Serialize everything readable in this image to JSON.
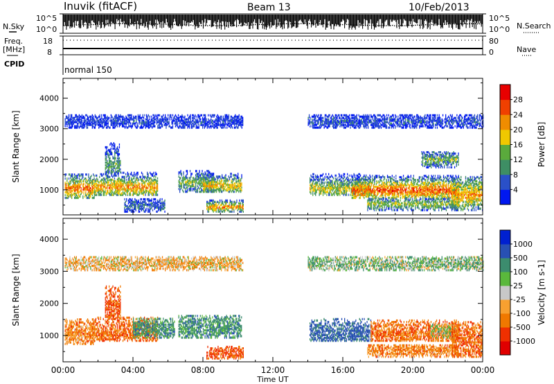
{
  "header": {
    "station": "Inuvik (fitACF)",
    "beam": "Beam 13",
    "date": "10/Feb/2013"
  },
  "top_panels": {
    "nsky_label": "N.Sky",
    "nsky_ticks": [
      "10^5",
      "10^0"
    ],
    "nsearch_label": "N.Search",
    "nsearch_ticks": [
      "10^5",
      "10^0"
    ],
    "freq_label_1": "Freq.",
    "freq_label_2": "[MHz]",
    "freq_ticks": [
      "18",
      "8"
    ],
    "nave_label": "Nave",
    "nave_ticks": [
      "80",
      "0"
    ],
    "cpid_label": "CPID",
    "cpid_value": "normal 150"
  },
  "colors": {
    "power": [
      "#0018f0",
      "#2a50c8",
      "#3e8e64",
      "#5aaa3c",
      "#f0c800",
      "#f08c00",
      "#f04000",
      "#e80000"
    ],
    "velocity": [
      "#e00000",
      "#f03000",
      "#f07800",
      "#f8a030",
      "#c8c8c8",
      "#5ab83c",
      "#3c8c6e",
      "#2850b4",
      "#0020d0"
    ]
  },
  "chart_data": [
    {
      "type": "heatmap",
      "title": "",
      "xlabel": "Time UT",
      "ylabel": "Slant Range [km]",
      "x_ticks": [
        "00:00",
        "04:00",
        "08:00",
        "12:00",
        "16:00",
        "20:00",
        "00:00"
      ],
      "xlim_hours": [
        0,
        24
      ],
      "y_ticks": [
        1000,
        2000,
        3000,
        4000
      ],
      "ylim": [
        180,
        4650
      ],
      "colorbar_label": "Power [dB]",
      "colorbar_ticks": [
        "4",
        "8",
        "12",
        "16",
        "20",
        "24",
        "28"
      ],
      "colorbar_range": [
        0,
        30
      ],
      "regions": [
        {
          "t0": 0.1,
          "t1": 1.8,
          "r0": 700,
          "r1": 1500,
          "core": 1000,
          "v": 24
        },
        {
          "t0": 1.8,
          "t1": 5.4,
          "r0": 800,
          "r1": 1550,
          "core": 1050,
          "v": 22
        },
        {
          "t0": 2.4,
          "t1": 3.3,
          "r0": 1500,
          "r1": 2500,
          "core": 1800,
          "v": 12
        },
        {
          "t0": 3.5,
          "t1": 5.8,
          "r0": 250,
          "r1": 700,
          "core": 450,
          "v": 8
        },
        {
          "t0": 6.6,
          "t1": 8.6,
          "r0": 900,
          "r1": 1600,
          "core": 1200,
          "v": 14
        },
        {
          "t0": 8.0,
          "t1": 10.2,
          "r0": 900,
          "r1": 1500,
          "core": 1100,
          "v": 20
        },
        {
          "t0": 8.2,
          "t1": 10.3,
          "r0": 250,
          "r1": 650,
          "core": 400,
          "v": 22
        },
        {
          "t0": 14.1,
          "t1": 17.6,
          "r0": 800,
          "r1": 1500,
          "core": 1000,
          "v": 18
        },
        {
          "t0": 16.5,
          "t1": 22.6,
          "r0": 700,
          "r1": 1450,
          "core": 950,
          "v": 26
        },
        {
          "t0": 17.4,
          "t1": 22.6,
          "r0": 300,
          "r1": 700,
          "core": 500,
          "v": 16
        },
        {
          "t0": 22.2,
          "t1": 24.0,
          "r0": 300,
          "r1": 1400,
          "core": 800,
          "v": 22
        },
        {
          "t0": 0.1,
          "t1": 10.3,
          "r0": 3000,
          "r1": 3450,
          "core": 3200,
          "v": 4
        },
        {
          "t0": 14.0,
          "t1": 24.0,
          "r0": 3000,
          "r1": 3450,
          "core": 3200,
          "v": 5
        },
        {
          "t0": 20.5,
          "t1": 22.6,
          "r0": 1700,
          "r1": 2200,
          "core": 1950,
          "v": 14
        }
      ]
    },
    {
      "type": "heatmap",
      "title": "",
      "xlabel": "Time UT",
      "ylabel": "Slant Range [km]",
      "x_ticks": [
        "00:00",
        "04:00",
        "08:00",
        "12:00",
        "16:00",
        "20:00",
        "00:00"
      ],
      "xlim_hours": [
        0,
        24
      ],
      "y_ticks": [
        1000,
        2000,
        3000,
        4000
      ],
      "ylim": [
        180,
        4650
      ],
      "colorbar_label": "Velocity [m s-1]",
      "colorbar_ticks": [
        "1000",
        "500",
        "100",
        "25",
        "-25",
        "-100",
        "-500",
        "-1000"
      ],
      "regions": [
        {
          "t0": 0.1,
          "t1": 1.8,
          "r0": 700,
          "r1": 1500,
          "core": 1000,
          "v": -150
        },
        {
          "t0": 1.8,
          "t1": 5.4,
          "r0": 800,
          "r1": 1550,
          "core": 1050,
          "v": -200
        },
        {
          "t0": 2.4,
          "t1": 3.3,
          "r0": 1500,
          "r1": 2500,
          "core": 1800,
          "v": -300
        },
        {
          "t0": 4.0,
          "t1": 6.4,
          "r0": 900,
          "r1": 1500,
          "core": 1200,
          "v": 150
        },
        {
          "t0": 6.6,
          "t1": 10.2,
          "r0": 900,
          "r1": 1600,
          "core": 1200,
          "v": 160
        },
        {
          "t0": 8.2,
          "t1": 10.3,
          "r0": 250,
          "r1": 650,
          "core": 400,
          "v": -300
        },
        {
          "t0": 14.1,
          "t1": 17.6,
          "r0": 800,
          "r1": 1500,
          "core": 1000,
          "v": 300
        },
        {
          "t0": 17.6,
          "t1": 22.6,
          "r0": 800,
          "r1": 1450,
          "core": 1000,
          "v": -200
        },
        {
          "t0": 17.4,
          "t1": 22.6,
          "r0": 300,
          "r1": 700,
          "core": 500,
          "v": -150
        },
        {
          "t0": 21.0,
          "t1": 22.4,
          "r0": 900,
          "r1": 1350,
          "core": 1100,
          "v": 0
        },
        {
          "t0": 22.2,
          "t1": 24.0,
          "r0": 300,
          "r1": 1400,
          "core": 800,
          "v": -200
        },
        {
          "t0": 0.1,
          "t1": 10.3,
          "r0": 3000,
          "r1": 3450,
          "core": 3200,
          "v": -60
        },
        {
          "t0": 14.0,
          "t1": 24.0,
          "r0": 3000,
          "r1": 3450,
          "core": 3200,
          "v": 60
        }
      ]
    }
  ]
}
